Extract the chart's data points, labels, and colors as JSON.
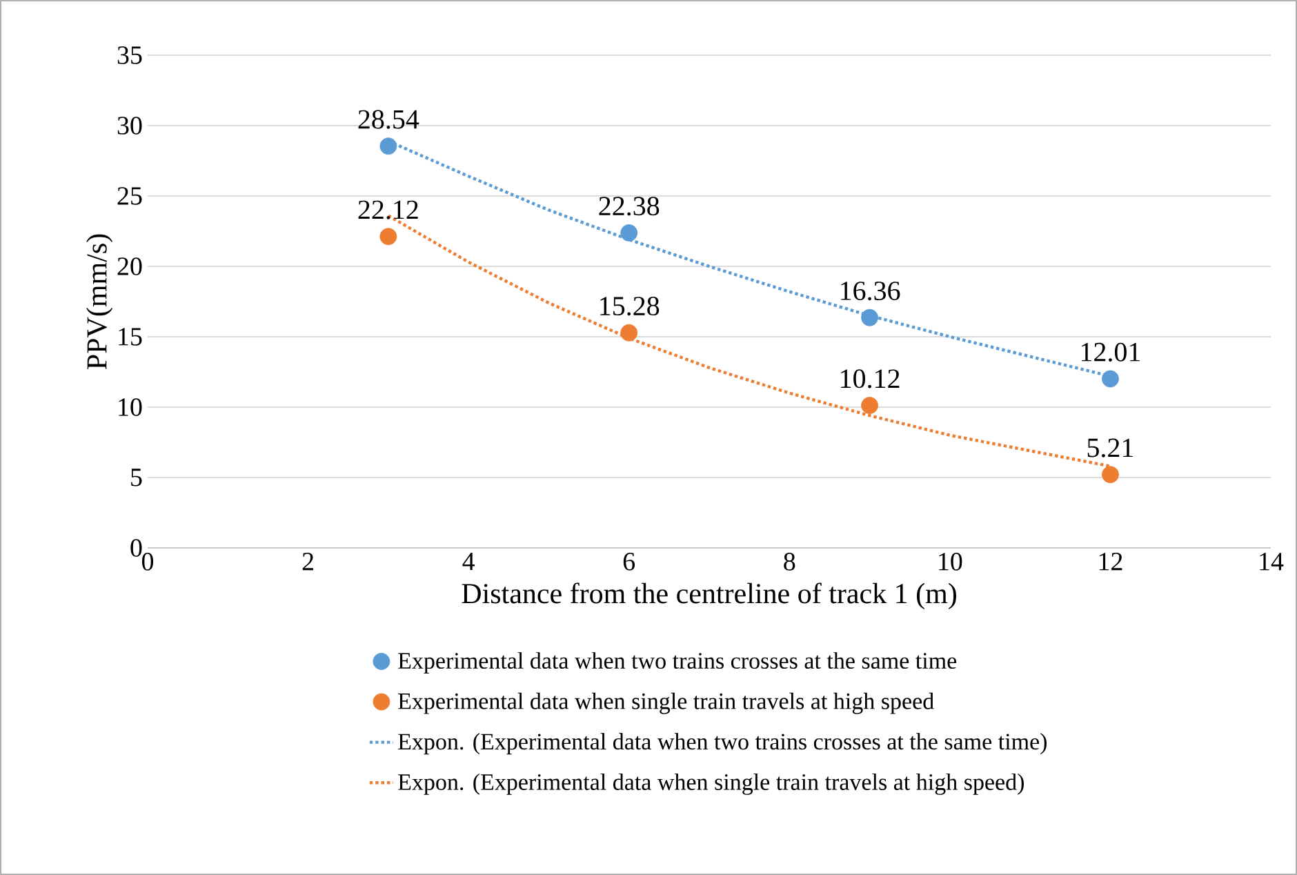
{
  "chart_data": {
    "type": "scatter",
    "xlabel": "Distance from the centreline of track 1 (m)",
    "ylabel": "PPV(mm/s)",
    "xlim": [
      0,
      14
    ],
    "xticks": [
      0,
      2,
      4,
      6,
      8,
      10,
      12,
      14
    ],
    "ylim": [
      0,
      35
    ],
    "yticks": [
      0,
      5,
      10,
      15,
      20,
      25,
      30,
      35
    ],
    "grid": "y",
    "legend": "bottom",
    "series": [
      {
        "name": "Experimental data when two trains crosses at the same time",
        "marker": "circle",
        "color": "#5b9bd5",
        "x": [
          3,
          6,
          9,
          12
        ],
        "values": [
          28.54,
          22.38,
          16.36,
          12.01
        ],
        "value_labels": [
          "28.54",
          "22.38",
          "16.36",
          "12.01"
        ]
      },
      {
        "name": "Experimental data when single train travels at high speed",
        "marker": "circle",
        "color": "#ed7d31",
        "x": [
          3,
          6,
          9,
          12
        ],
        "values": [
          22.12,
          15.28,
          10.12,
          5.21
        ],
        "value_labels": [
          "22.12",
          "15.28",
          "10.12",
          "5.21"
        ]
      },
      {
        "name": "Expon. (Experimental data when two trains crosses at the same time)",
        "type": "line",
        "marker": "none",
        "line_style": "dotted",
        "color": "#5b9bd5",
        "x": [
          3,
          4,
          5,
          6,
          7,
          8,
          9,
          10,
          11,
          12
        ],
        "values": [
          28.9,
          26.4,
          24.0,
          21.9,
          20.0,
          18.2,
          16.5,
          15.0,
          13.6,
          12.2
        ]
      },
      {
        "name": "Expon. (Experimental data when single train travels at high speed)",
        "type": "line",
        "marker": "none",
        "line_style": "dotted",
        "color": "#ed7d31",
        "x": [
          3,
          4,
          5,
          6,
          7,
          8,
          9,
          10,
          11,
          12
        ],
        "values": [
          23.6,
          20.3,
          17.4,
          14.9,
          12.8,
          11.0,
          9.4,
          8.0,
          6.9,
          5.8
        ]
      }
    ]
  }
}
